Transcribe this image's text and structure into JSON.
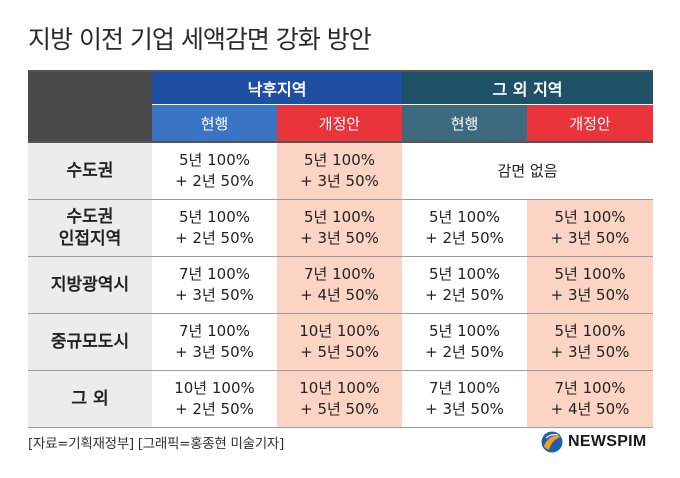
{
  "title": "지방 이전 기업 세액감면 강화 방안",
  "headers": {
    "group1": "낙후지역",
    "group2": "그 외 지역",
    "sub": [
      "현행",
      "개정안",
      "현행",
      "개정안"
    ]
  },
  "rows": [
    {
      "label": [
        "수도권"
      ],
      "g1_current": [
        "5년 100%",
        "+ 2년 50%"
      ],
      "g1_revised": [
        "5년 100%",
        "+ 3년 50%"
      ],
      "g2_merged": "감면 없음"
    },
    {
      "label": [
        "수도권",
        "인접지역"
      ],
      "g1_current": [
        "5년 100%",
        "+ 2년 50%"
      ],
      "g1_revised": [
        "5년 100%",
        "+ 3년 50%"
      ],
      "g2_current": [
        "5년 100%",
        "+ 2년 50%"
      ],
      "g2_revised": [
        "5년 100%",
        "+ 3년 50%"
      ]
    },
    {
      "label": [
        "지방광역시"
      ],
      "g1_current": [
        "7년 100%",
        "+ 3년 50%"
      ],
      "g1_revised": [
        "7년 100%",
        "+ 4년 50%"
      ],
      "g2_current": [
        "5년 100%",
        "+ 2년 50%"
      ],
      "g2_revised": [
        "5년 100%",
        "+ 3년 50%"
      ]
    },
    {
      "label": [
        "중규모도시"
      ],
      "g1_current": [
        "7년 100%",
        "+ 3년 50%"
      ],
      "g1_revised": [
        "10년 100%",
        "+ 5년 50%"
      ],
      "g2_current": [
        "5년 100%",
        "+ 2년 50%"
      ],
      "g2_revised": [
        "5년 100%",
        "+ 3년 50%"
      ]
    },
    {
      "label": [
        "그 외"
      ],
      "g1_current": [
        "10년 100%",
        "+ 2년 50%"
      ],
      "g1_revised": [
        "10년 100%",
        "+ 5년 50%"
      ],
      "g2_current": [
        "7년 100%",
        "+ 3년 50%"
      ],
      "g2_revised": [
        "7년 100%",
        "+ 4년 50%"
      ]
    }
  ],
  "footer": {
    "source": "[자료=기획재정부] [그래픽=홍종현 미술기자]",
    "logo_text": "NEWSPIM"
  },
  "colors": {
    "header_dark": "#4a4a4a",
    "group_blue": "#1f4fa3",
    "group_teal": "#1e5066",
    "sub_blue": "#3a74c4",
    "sub_red": "#e8343a",
    "sub_teal": "#3e6a80",
    "highlight_pink": "#fbd4c4",
    "label_gray": "#ececec"
  },
  "icons": {
    "logo": "newspim-globe-icon"
  }
}
